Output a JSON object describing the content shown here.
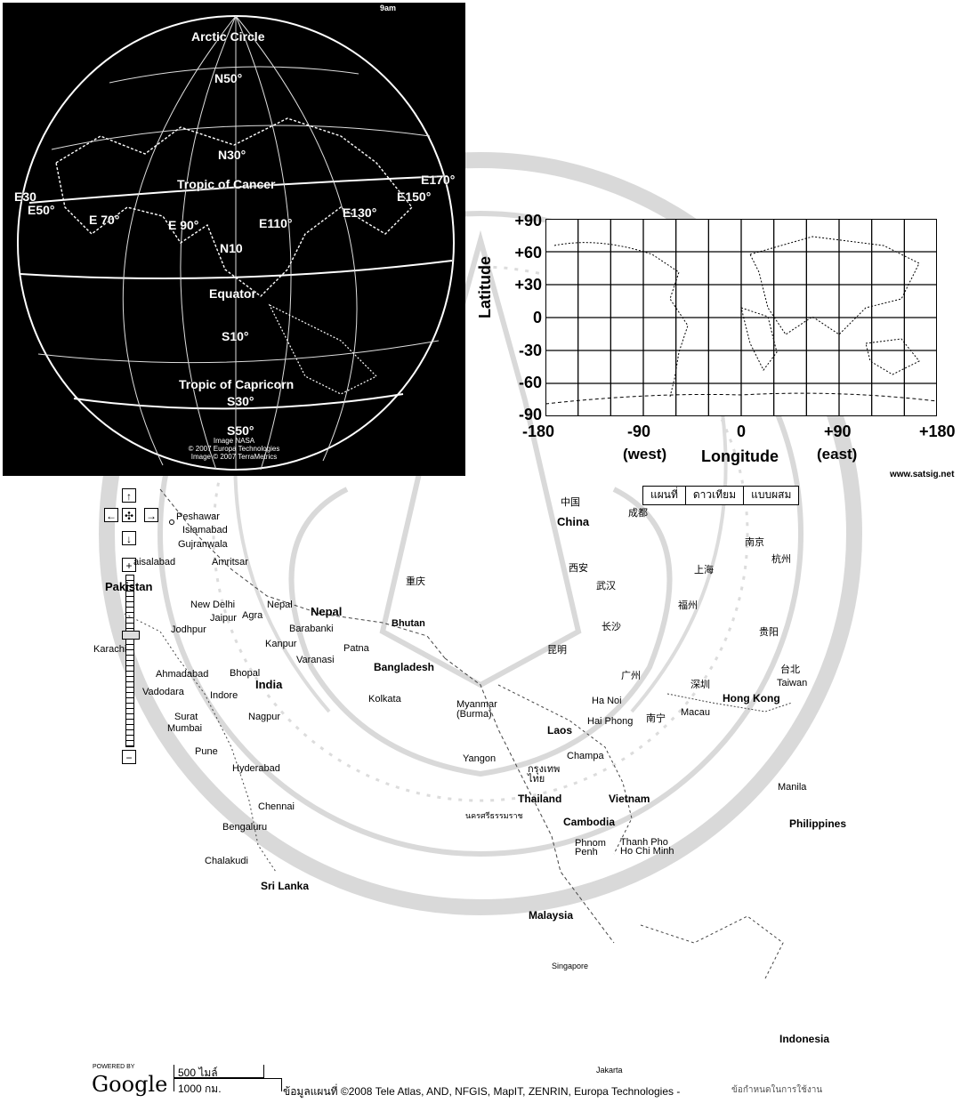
{
  "globe": {
    "labels": {
      "top": "9am",
      "arctic": "Arctic Circle",
      "n50": "N50°",
      "n30": "N30°",
      "cancer": "Tropic of Cancer",
      "e30": "E30",
      "e50": "E50°",
      "e70": "E 70°",
      "e90": "E 90°",
      "e110": "E110°",
      "e130": "E130°",
      "e150": "E150°",
      "e170": "E170°",
      "n10": "N10",
      "equator": "Equator",
      "s10": "S10°",
      "capricorn": "Tropic of Capricorn",
      "s30": "S30°",
      "s50": "S50°"
    },
    "credits": [
      "Image NASA",
      "© 2007 Europa Technologies",
      "Image © 2007 TerraMetrics"
    ]
  },
  "grid": {
    "y_ticks": [
      "+90",
      "+60",
      "+30",
      "0",
      "-30",
      "-60",
      "-90"
    ],
    "x_ticks": [
      "-180",
      "-90",
      "0",
      "+90",
      "+180"
    ],
    "x_sub": [
      "(west)",
      "(east)"
    ],
    "ylabel": "Latitude",
    "xlabel": "Longitude",
    "source": "www.satsig.net"
  },
  "map": {
    "types": [
      "แผนที่",
      "ดาวเทียม",
      "แบบผสม"
    ],
    "controls": {
      "up": "↑",
      "down": "↓",
      "left": "←",
      "right": "→",
      "center": "✣",
      "zoom_in": "+",
      "zoom_out": "−"
    },
    "zoom_level": 0.35,
    "places_big": {
      "china": "China",
      "pakistan": "Pakistan",
      "nepal": "Nepal",
      "bhutan": "Bhutan",
      "india": "India",
      "bangladesh": "Bangladesh",
      "myanmar": "Myanmar\n(Burma)",
      "laos": "Laos",
      "thailand": "Thailand",
      "vietnam": "Vietnam",
      "cambodia": "Cambodia",
      "hongkong": "Hong Kong",
      "philippines": "Philippines",
      "srilanka": "Sri Lanka",
      "malaysia": "Malaysia",
      "indonesia": "Indonesia",
      "taiwan": "Taiwan"
    },
    "places_small": {
      "peshawar": "Peshawar",
      "islamabad": "Islamabad",
      "gujranwala": "Gujranwala",
      "faisalabad": "aisalabad",
      "amritsar": "Amritsar",
      "newdelhi": "New Delhi",
      "nepalcity": "Nepal",
      "jaipur": "Jaipur",
      "agra": "Agra",
      "barabanki": "Barabanki",
      "jodhpur": "Jodhpur",
      "kanpur": "Kanpur",
      "patna": "Patna",
      "varanasi": "Varanasi",
      "karachi": "Karachi",
      "ahmadabad": "Ahmadabad",
      "bhopal": "Bhopal",
      "vadodara": "Vadodara",
      "indore": "Indore",
      "kolkata": "Kolkata",
      "surat": "Surat",
      "mumbai": "Mumbai",
      "nagpur": "Nagpur",
      "pune": "Pune",
      "hyderabad": "Hyderabad",
      "chennai": "Chennai",
      "bengaluru": "Bengaluru",
      "chalakudi": "Chalakudi",
      "yangon": "Yangon",
      "hanoi": "Ha Noi",
      "haiphong": "Hai Phong",
      "macau": "Macau",
      "champasak": "Champa",
      "bangkok": "กรุงเทพ\nไทย",
      "nakhon": "นครศรีธรรมราช",
      "phnompenh": "Phnom\nPenh",
      "hochiminh": "Thanh Pho\nHo Chi Minh",
      "manila": "Manila",
      "singapore": "Singapore",
      "jakarta": "Jakarta"
    },
    "chinese_labels": [
      "中国",
      "成都",
      "西安",
      "武汉",
      "上海",
      "杭州",
      "南京",
      "重庆",
      "长沙",
      "福州",
      "昆明",
      "贵阳",
      "广州",
      "南宁",
      "台北",
      "深圳"
    ]
  },
  "footer": {
    "powered_by": "POWERED BY",
    "google": "Google",
    "scale_miles": "500 ไมล์",
    "scale_km": "1000 กม.",
    "attribution": "ข้อมูลแผนที่ ©2008 Tele Atlas, AND, NFGIS, MapIT, ZENRIN, Europa Technologies -",
    "terms": "ข้อกำหนดในการใช้งาน"
  }
}
